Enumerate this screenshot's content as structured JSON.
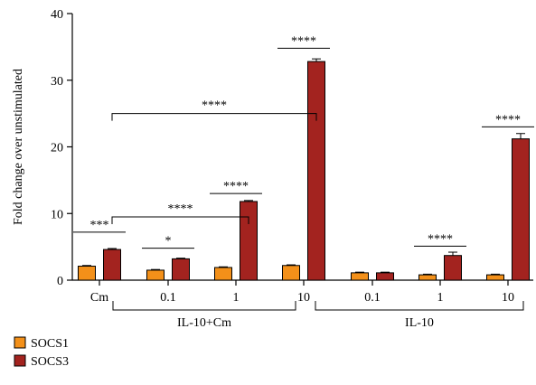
{
  "chart_data": {
    "type": "bar",
    "ylabel": "Fold change over unstimulated",
    "ylim": [
      0,
      40
    ],
    "yticks": [
      0,
      10,
      20,
      30,
      40
    ],
    "categories": [
      "Cm",
      "0.1",
      "1",
      "10",
      "0.1",
      "1",
      "10"
    ],
    "groups": [
      {
        "label": "IL-10+Cm",
        "categories": [
          1,
          3
        ]
      },
      {
        "label": "IL-10",
        "categories": [
          4,
          6
        ]
      }
    ],
    "series": [
      {
        "name": "SOCS1",
        "color": "#f39019",
        "values": [
          2.1,
          1.5,
          1.9,
          2.2,
          1.1,
          0.8,
          0.8
        ],
        "errors": [
          0.1,
          0.1,
          0.1,
          0.1,
          0.1,
          0.1,
          0.1
        ]
      },
      {
        "name": "SOCS3",
        "color": "#a3231f",
        "values": [
          4.6,
          3.2,
          11.8,
          32.8,
          1.1,
          3.7,
          21.2
        ],
        "errors": [
          0.15,
          0.1,
          0.15,
          0.4,
          0.1,
          0.5,
          0.8
        ]
      }
    ],
    "annotations": [
      {
        "text": "***",
        "from": 0,
        "to": 0,
        "y": 7.2,
        "style": "bar"
      },
      {
        "text": "*",
        "from": 1,
        "to": 1,
        "y": 4.8,
        "style": "bar"
      },
      {
        "text": "****",
        "from": 2,
        "to": 2,
        "y": 13.0,
        "style": "bar"
      },
      {
        "text": "****",
        "from": 3,
        "to": 3,
        "y": 34.8,
        "style": "bar"
      },
      {
        "text": "****",
        "from": 5,
        "to": 5,
        "y": 5.1,
        "style": "bar"
      },
      {
        "text": "****",
        "from": 6,
        "to": 6,
        "y": 23.0,
        "style": "bar"
      },
      {
        "text": "****",
        "from": 0,
        "to": 2,
        "y": 9.5,
        "style": "bracket"
      },
      {
        "text": "****",
        "from": 0,
        "to": 3,
        "y": 25.0,
        "style": "bracket"
      }
    ]
  }
}
